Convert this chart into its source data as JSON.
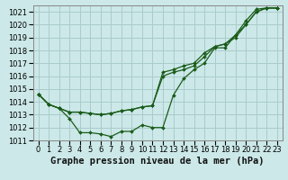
{
  "background_color": "#cce8e8",
  "grid_color": "#aacccc",
  "line_color": "#1a5c1a",
  "ylim": [
    1011,
    1021.5
  ],
  "xlim": [
    -0.5,
    23.5
  ],
  "yticks": [
    1011,
    1012,
    1013,
    1014,
    1015,
    1016,
    1017,
    1018,
    1019,
    1020,
    1021
  ],
  "xticks": [
    0,
    1,
    2,
    3,
    4,
    5,
    6,
    7,
    8,
    9,
    10,
    11,
    12,
    13,
    14,
    15,
    16,
    17,
    18,
    19,
    20,
    21,
    22,
    23
  ],
  "series1": {
    "x": [
      0,
      1,
      2,
      3,
      4,
      5,
      6,
      7,
      8,
      9,
      10,
      11,
      12,
      13,
      14,
      15,
      16,
      17,
      18,
      19,
      20,
      21,
      22,
      23
    ],
    "y": [
      1014.6,
      1013.8,
      1013.5,
      1012.7,
      1011.6,
      1011.6,
      1011.5,
      1011.3,
      1011.7,
      1011.7,
      1012.2,
      1012.0,
      1012.0,
      1014.5,
      1015.8,
      1016.5,
      1017.0,
      1018.2,
      1018.2,
      1019.2,
      1020.3,
      1021.2,
      1021.3,
      1021.3
    ]
  },
  "series2": {
    "x": [
      0,
      1,
      2,
      3,
      4,
      5,
      6,
      7,
      8,
      9,
      10,
      11,
      12,
      13,
      14,
      15,
      16,
      17,
      18,
      19,
      20,
      21,
      22,
      23
    ],
    "y": [
      1014.6,
      1013.8,
      1013.5,
      1013.2,
      1013.2,
      1013.1,
      1013.0,
      1013.1,
      1013.3,
      1013.4,
      1013.6,
      1013.7,
      1016.3,
      1016.5,
      1016.8,
      1017.0,
      1017.8,
      1018.3,
      1018.5,
      1019.0,
      1020.0,
      1021.0,
      1021.3,
      1021.3
    ]
  },
  "series3": {
    "x": [
      0,
      1,
      2,
      3,
      4,
      5,
      6,
      7,
      8,
      9,
      10,
      11,
      12,
      13,
      14,
      15,
      16,
      17,
      18,
      19,
      20,
      21,
      22,
      23
    ],
    "y": [
      1014.6,
      1013.8,
      1013.5,
      1013.2,
      1013.2,
      1013.1,
      1013.0,
      1013.1,
      1013.3,
      1013.4,
      1013.6,
      1013.7,
      1016.0,
      1016.3,
      1016.5,
      1016.8,
      1017.5,
      1018.3,
      1018.5,
      1019.2,
      1020.0,
      1021.0,
      1021.3,
      1021.3
    ]
  },
  "xlabel": "Graphe pression niveau de la mer (hPa)",
  "xlabel_fontsize": 7.5,
  "tick_fontsize": 6.0
}
